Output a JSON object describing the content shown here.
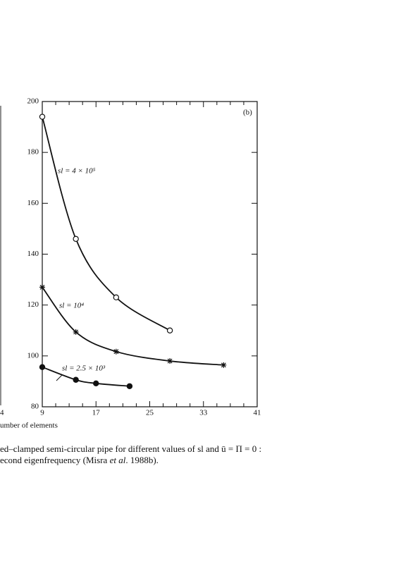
{
  "chart_data": {
    "type": "line",
    "panel_label": "(b)",
    "xlim": [
      9,
      41
    ],
    "xticks": [
      9,
      17,
      25,
      33,
      41
    ],
    "xminorticks": [
      11,
      13,
      15,
      19,
      21,
      23,
      27,
      29,
      31,
      35,
      37,
      39
    ],
    "ylim": [
      80,
      200
    ],
    "yticks": [
      80,
      100,
      120,
      140,
      160,
      180,
      200
    ],
    "series": [
      {
        "name": "sl = 4 × 10⁵",
        "marker": "open-circle",
        "color": "#111",
        "x": [
          9,
          14,
          20,
          28
        ],
        "values": [
          194,
          146,
          123,
          110
        ]
      },
      {
        "name": "sl = 10⁴",
        "marker": "star",
        "color": "#111",
        "x": [
          9,
          14,
          20,
          28,
          36
        ],
        "values": [
          127,
          109.4,
          101.7,
          98,
          96.4
        ]
      },
      {
        "name": "sl = 2.5 × 10³",
        "marker": "filled-circle",
        "color": "#111",
        "x": [
          9,
          14,
          17,
          22
        ],
        "values": [
          95.6,
          90.6,
          89.2,
          88.1
        ]
      }
    ],
    "cut_tick_label": "4",
    "cut_axis_label": "umber of elements",
    "caption": [
      "ed–clamped semi-circular pipe for different values of sl and ū = Π = 0 :",
      "econd eigenfrequency (Misra",
      "et al",
      ". 1988b)."
    ]
  }
}
